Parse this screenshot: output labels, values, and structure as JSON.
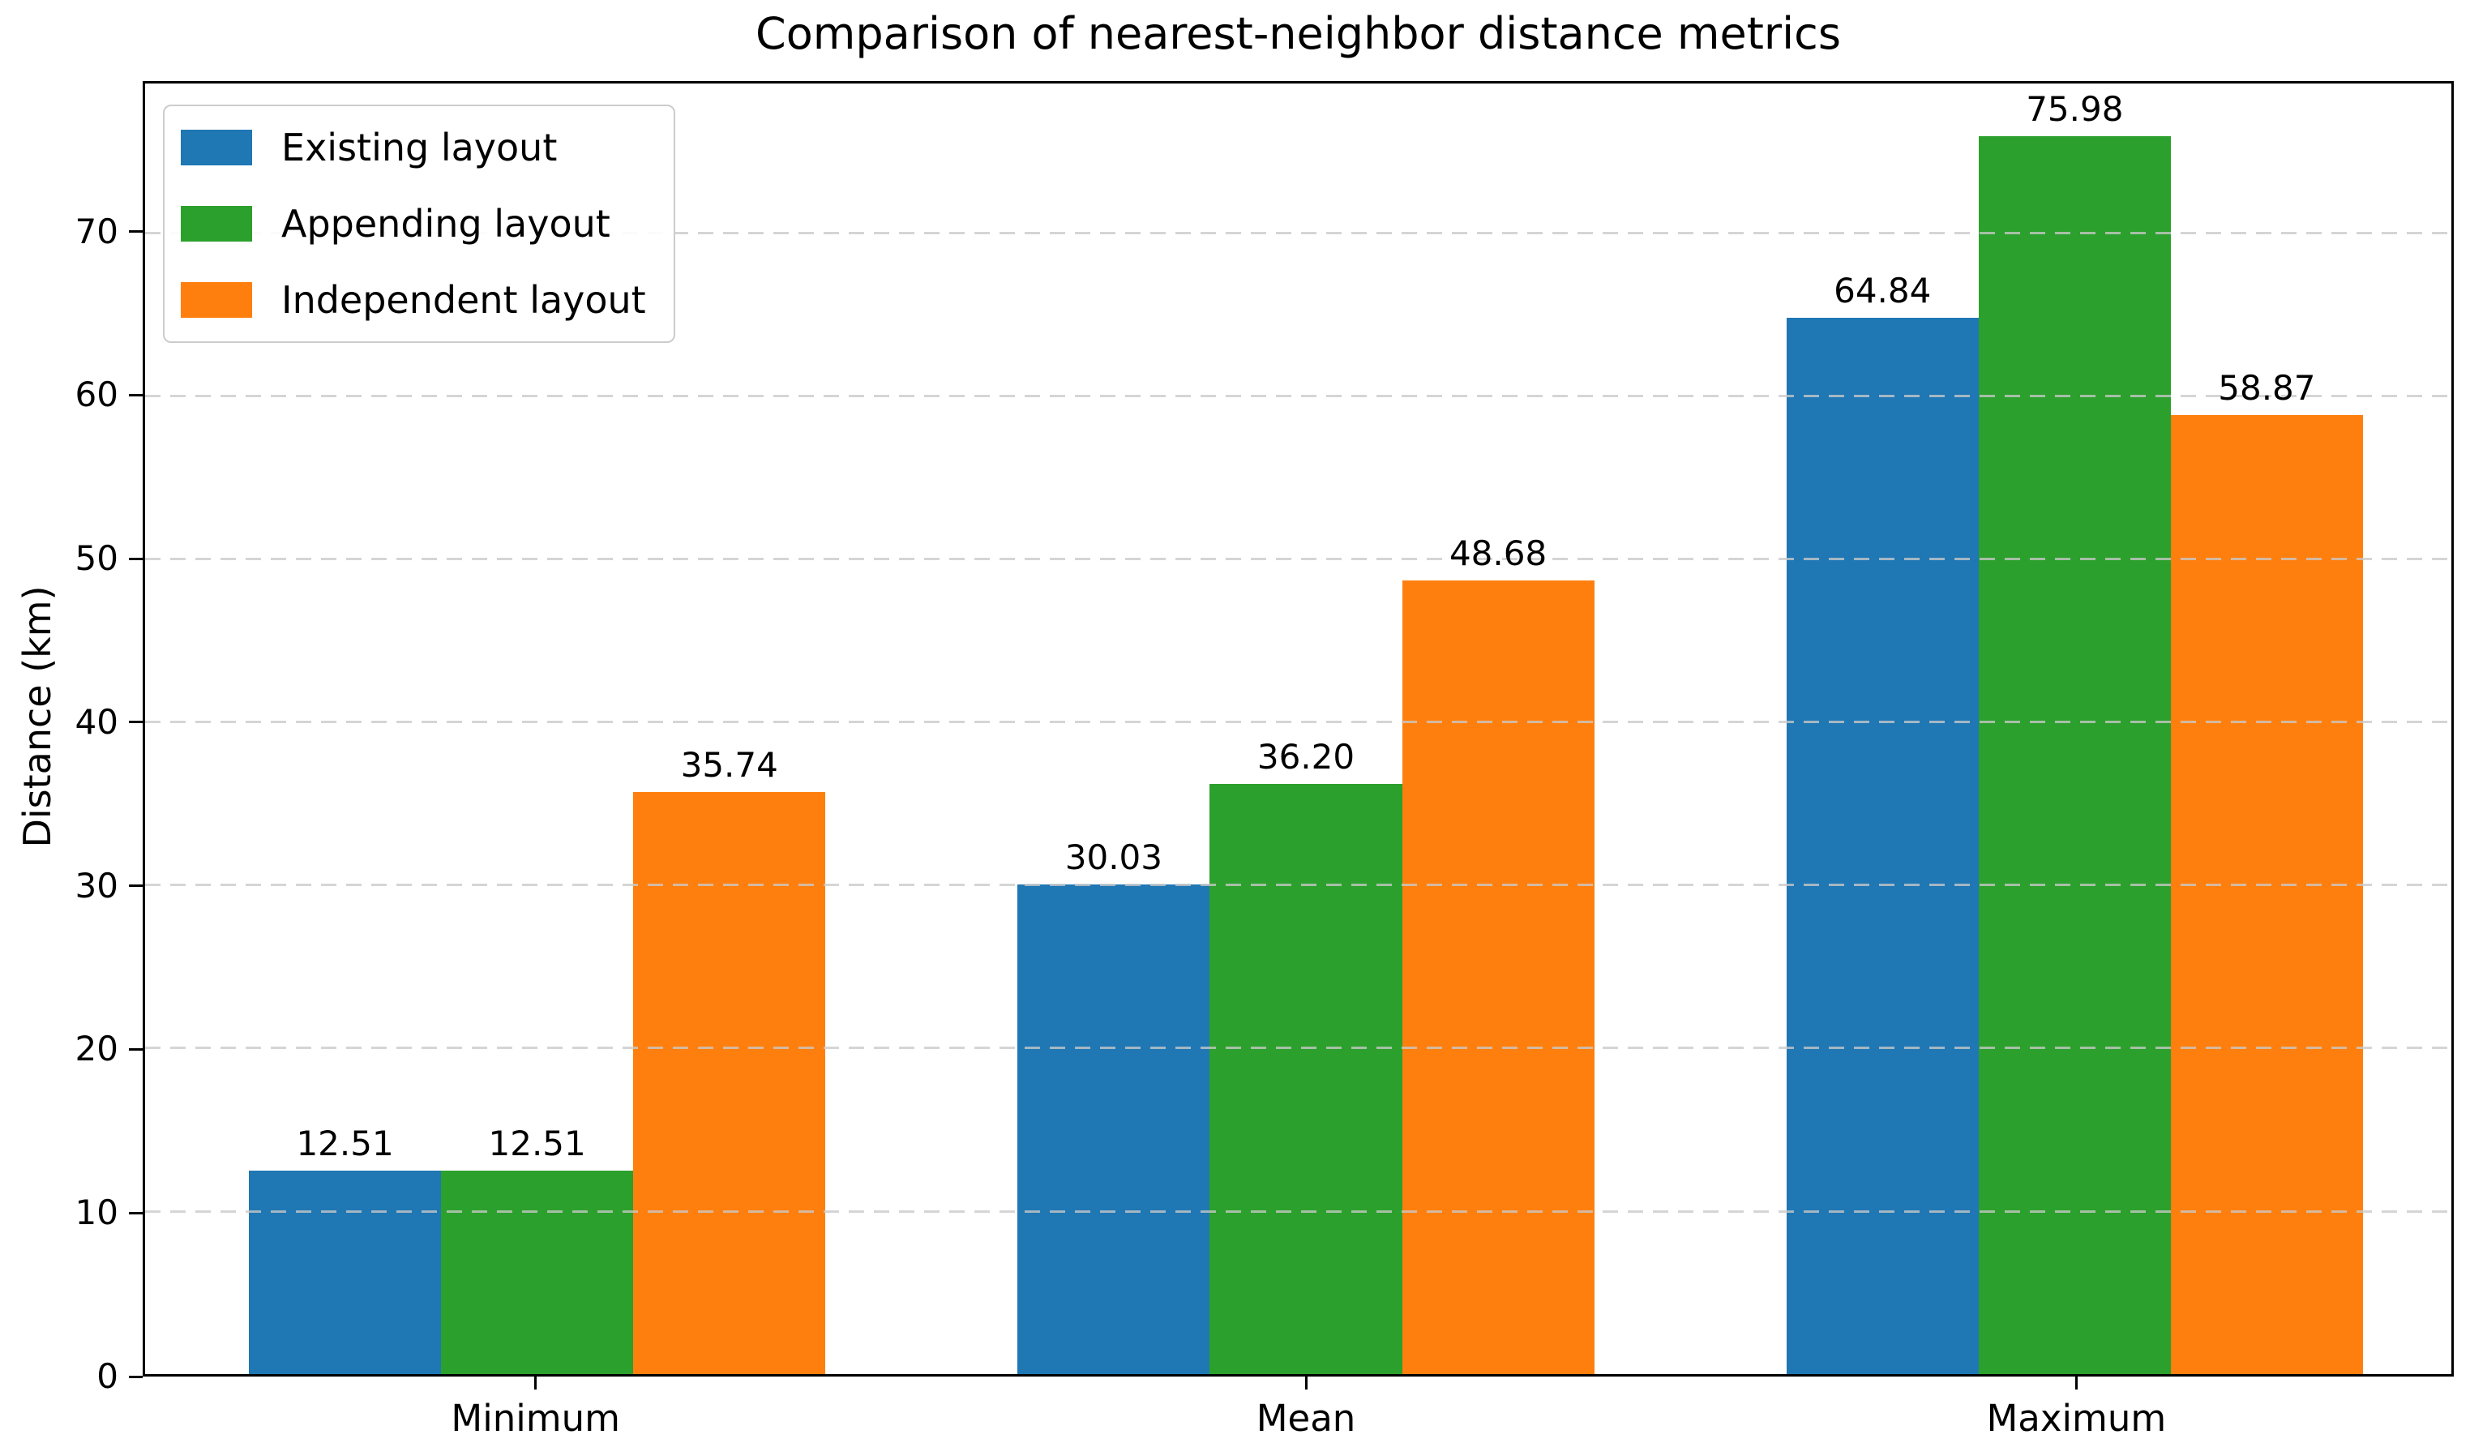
{
  "chart_data": {
    "type": "bar",
    "title": "Comparison of nearest-neighbor distance metrics",
    "ylabel": "Distance (km)",
    "xlabel": "",
    "categories": [
      "Minimum",
      "Mean",
      "Maximum"
    ],
    "series": [
      {
        "name": "Existing layout",
        "color": "#1f77b4",
        "values": [
          12.51,
          30.03,
          64.84
        ]
      },
      {
        "name": "Appending layout",
        "color": "#2ca02c",
        "values": [
          12.51,
          36.2,
          75.98
        ]
      },
      {
        "name": "Independent layout",
        "color": "#ff7f0e",
        "values": [
          35.74,
          48.68,
          58.87
        ]
      }
    ],
    "bar_value_labels": [
      [
        "12.51",
        "30.03",
        "64.84"
      ],
      [
        "12.51",
        "36.20",
        "75.98"
      ],
      [
        "35.74",
        "48.68",
        "58.87"
      ]
    ],
    "yticks": [
      0,
      10,
      20,
      30,
      40,
      50,
      60,
      70
    ],
    "ylim": [
      0,
      79.2
    ],
    "xlim": [
      -0.51,
      2.49
    ],
    "bar_width": 0.25,
    "series_offsets": [
      -0.25,
      0,
      0.25
    ],
    "grid": "horizontal-dashed",
    "legend_position": "upper-left",
    "colors": {
      "grid": "#c9c9c9",
      "spine": "#000000",
      "background": "#ffffff",
      "legend_border": "#cccccc",
      "text": "#000000"
    }
  }
}
